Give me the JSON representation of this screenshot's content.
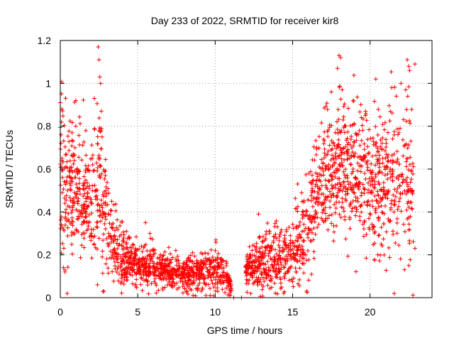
{
  "chart_data": {
    "type": "scatter",
    "title": "Day 233 of 2022, SRMTID for receiver kir8",
    "xlabel": "GPS time / hours",
    "ylabel": "SRMTID / TECUs",
    "xlim": [
      0,
      24
    ],
    "ylim": [
      0,
      1.2
    ],
    "xticks": [
      "0",
      "5",
      "10",
      "15",
      "20"
    ],
    "yticks": [
      "0",
      "0.2",
      "0.4",
      "0.6",
      "0.8",
      "1",
      "1.2"
    ],
    "grid": true,
    "marker": "plus",
    "color": "#ff0000",
    "envelope": [
      [
        0.0,
        0.55,
        0.2
      ],
      [
        1.0,
        0.48,
        0.15
      ],
      [
        2.0,
        0.45,
        0.14
      ],
      [
        2.5,
        0.52,
        0.2
      ],
      [
        3.0,
        0.38,
        0.12
      ],
      [
        3.5,
        0.25,
        0.08
      ],
      [
        4.0,
        0.18,
        0.06
      ],
      [
        5.0,
        0.15,
        0.05
      ],
      [
        6.0,
        0.14,
        0.05
      ],
      [
        7.0,
        0.12,
        0.04
      ],
      [
        8.0,
        0.11,
        0.04
      ],
      [
        9.0,
        0.12,
        0.04
      ],
      [
        10.0,
        0.13,
        0.05
      ],
      [
        10.8,
        0.1,
        0.04
      ],
      [
        11.0,
        0.04,
        0.03
      ],
      [
        12.0,
        0.13,
        0.04
      ],
      [
        13.0,
        0.17,
        0.07
      ],
      [
        14.0,
        0.18,
        0.08
      ],
      [
        15.0,
        0.22,
        0.08
      ],
      [
        15.8,
        0.28,
        0.1
      ],
      [
        16.5,
        0.5,
        0.14
      ],
      [
        17.5,
        0.6,
        0.15
      ],
      [
        18.5,
        0.62,
        0.15
      ],
      [
        19.5,
        0.55,
        0.15
      ],
      [
        20.5,
        0.55,
        0.17
      ],
      [
        21.5,
        0.6,
        0.17
      ],
      [
        22.5,
        0.55,
        0.2
      ],
      [
        22.8,
        0.5,
        0.2
      ]
    ],
    "points": [
      [
        0.0,
        0.91
      ],
      [
        0.05,
        0.76
      ],
      [
        0.1,
        0.88
      ],
      [
        0.2,
        0.14
      ],
      [
        0.3,
        0.12
      ],
      [
        1.0,
        0.8
      ],
      [
        1.0,
        0.92
      ],
      [
        2.2,
        0.93
      ],
      [
        2.4,
        0.06
      ],
      [
        2.45,
        1.17
      ],
      [
        2.5,
        1.11
      ],
      [
        2.55,
        1.03
      ],
      [
        2.6,
        1.0
      ],
      [
        2.65,
        0.87
      ],
      [
        2.7,
        0.75
      ],
      [
        5.5,
        0.35
      ],
      [
        11.2,
        0.0
      ],
      [
        11.7,
        0.0
      ],
      [
        12.8,
        0.39
      ],
      [
        17.9,
        1.07
      ],
      [
        18.0,
        1.13
      ],
      [
        18.1,
        1.12
      ],
      [
        18.2,
        0.97
      ],
      [
        17.5,
        0.96
      ],
      [
        21.4,
        0.98
      ],
      [
        22.0,
        1.0
      ],
      [
        22.3,
        0.97
      ],
      [
        22.4,
        1.11
      ],
      [
        22.5,
        1.08
      ],
      [
        22.55,
        1.06
      ],
      [
        22.9,
        1.09
      ],
      [
        22.5,
        0.15
      ],
      [
        22.9,
        0.23
      ],
      [
        20.5,
        0.2
      ],
      [
        19.7,
        0.85
      ]
    ]
  }
}
